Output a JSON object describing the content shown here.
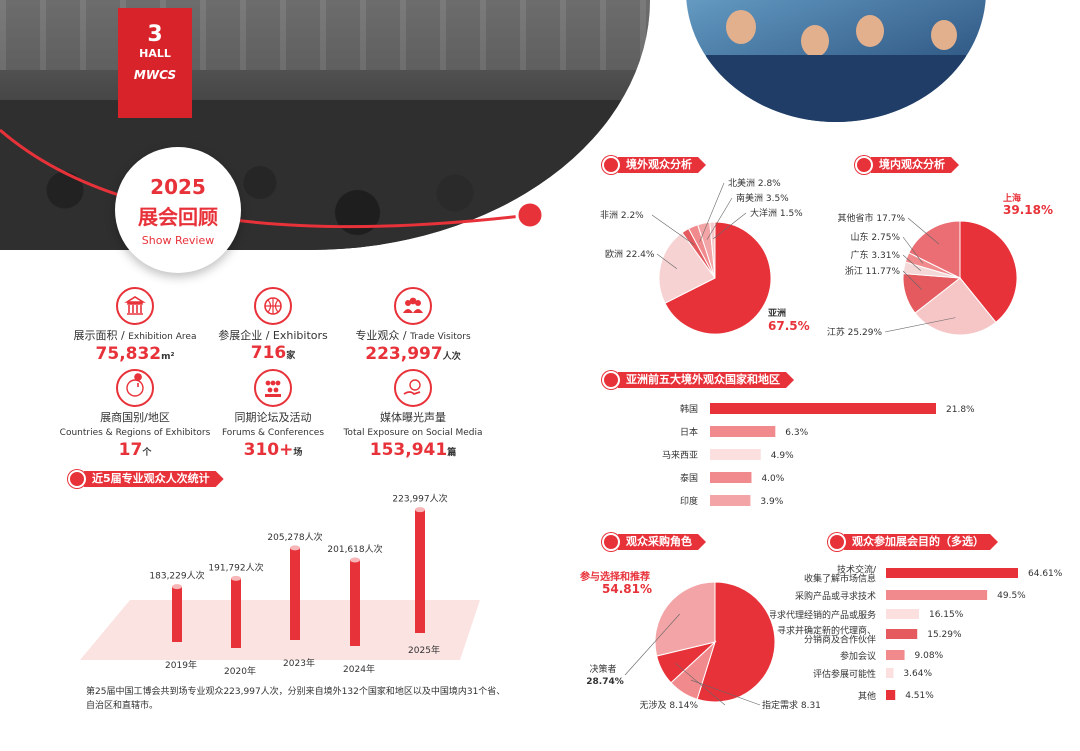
{
  "header": {
    "hall_num": "3",
    "hall_word": "HALL",
    "brand": "MWCS",
    "year": "2025",
    "title": "展会回顾",
    "subtitle": "Show Review"
  },
  "stats": [
    {
      "cn": "展示面积 / ",
      "en": "Exhibition Area",
      "value": "75,832",
      "unit": "m²",
      "icon": "building-icon"
    },
    {
      "cn": "参展企业 / Exhibitors",
      "en": "",
      "value": "716",
      "unit": "家",
      "icon": "globe-icon"
    },
    {
      "cn": "专业观众 / ",
      "en": "Trade Visitors",
      "value": "223,997",
      "unit": "人次",
      "icon": "people-icon"
    },
    {
      "cn": "展商国别/地区",
      "en": "Countries & Regions of Exhibitors",
      "value": "17",
      "unit": "个",
      "icon": "map-pin-icon"
    },
    {
      "cn": "同期论坛及活动",
      "en": "Forums & Conferences",
      "value": "310+",
      "unit": "场",
      "icon": "audience-icon"
    },
    {
      "cn": "媒体曝光声量",
      "en": "Total Exposure on Social Media",
      "value": "153,941",
      "unit": "篇",
      "icon": "hand-globe-icon"
    }
  ],
  "sections": {
    "five_year": "近5届专业观众人次统计",
    "overseas": "境外观众分析",
    "domestic": "境内观众分析",
    "asia_top5": "亚洲前五大境外观众国家和地区",
    "role": "观众采购角色",
    "purpose": "观众参加展会目的（多选）"
  },
  "note": "第25届中国工博会共到场专业观众223,997人次，分别来自境外132个国家和地区以及中国境内31个省、自治区和直辖市。",
  "colors": {
    "accent": "#e8323a",
    "light": "#f08a8c",
    "pale": "#f6c6c7",
    "mid": "#e45a5f"
  },
  "chart_data": [
    {
      "type": "bar",
      "title": "近5届专业观众人次统计",
      "categories": [
        "2019年",
        "2020年",
        "2023年",
        "2024年",
        "2025年"
      ],
      "values": [
        183229,
        191792,
        205278,
        201618,
        223997
      ],
      "labels": [
        "183,229人次",
        "191,792人次",
        "205,278人次",
        "201,618人次",
        "223,997人次"
      ]
    },
    {
      "type": "pie",
      "title": "境外观众分析",
      "slices": [
        {
          "name": "亚洲",
          "value": 67.5,
          "label": "67.5%"
        },
        {
          "name": "欧洲",
          "value": 22.4,
          "label": "22.4%"
        },
        {
          "name": "非洲",
          "value": 2.2,
          "label": "2.2%"
        },
        {
          "name": "北美洲",
          "value": 2.8,
          "label": "2.8%"
        },
        {
          "name": "南美洲",
          "value": 3.5,
          "label": "3.5%"
        },
        {
          "name": "大洋洲",
          "value": 1.5,
          "label": "1.5%"
        }
      ]
    },
    {
      "type": "pie",
      "title": "境内观众分析",
      "slices": [
        {
          "name": "上海",
          "value": 39.18,
          "label": "39.18%"
        },
        {
          "name": "江苏",
          "value": 25.29,
          "label": "25.29%"
        },
        {
          "name": "浙江",
          "value": 11.77,
          "label": "11.77%"
        },
        {
          "name": "广东",
          "value": 3.31,
          "label": "3.31%"
        },
        {
          "name": "山东",
          "value": 2.75,
          "label": "2.75%"
        },
        {
          "name": "其他省市",
          "value": 17.7,
          "label": "17.7%"
        }
      ]
    },
    {
      "type": "bar",
      "title": "亚洲前五大境外观众国家和地区",
      "orientation": "horizontal",
      "categories": [
        "韩国",
        "日本",
        "马来西亚",
        "泰国",
        "印度"
      ],
      "values": [
        21.8,
        6.3,
        4.9,
        4.0,
        3.9
      ],
      "labels": [
        "21.8%",
        "6.3%",
        "4.9%",
        "4.0%",
        "3.9%"
      ]
    },
    {
      "type": "pie",
      "title": "观众采购角色",
      "slices": [
        {
          "name": "参与选择和推荐",
          "value": 54.81,
          "label": "54.81%"
        },
        {
          "name": "指定需求",
          "value": 8.31,
          "label": "8.31%"
        },
        {
          "name": "无涉及",
          "value": 8.14,
          "label": "8.14%"
        },
        {
          "name": "决策者",
          "value": 28.74,
          "label": "28.74%"
        }
      ]
    },
    {
      "type": "bar",
      "title": "观众参加展会目的（多选）",
      "orientation": "horizontal",
      "categories": [
        "技术交流/收集了解市场信息",
        "采购产品或寻求技术",
        "寻求代理经销的产品或服务",
        "寻求并确定新的代理商、分销商及合作伙伴",
        "参加会议",
        "评估参展可能性",
        "其他"
      ],
      "category_lines": [
        [
          "技术交流/",
          "收集了解市场信息"
        ],
        [
          "采购产品或寻求技术"
        ],
        [
          "寻求代理经销的产品或服务"
        ],
        [
          "寻求并确定新的代理商、",
          "分销商及合作伙伴"
        ],
        [
          "参加会议"
        ],
        [
          "评估参展可能性"
        ],
        [
          "其他"
        ]
      ],
      "values": [
        64.61,
        49.5,
        16.15,
        15.29,
        9.08,
        3.64,
        4.51
      ],
      "labels": [
        "64.61%",
        "49.5%",
        "16.15%",
        "15.29%",
        "9.08%",
        "3.64%",
        "4.51%"
      ]
    }
  ]
}
